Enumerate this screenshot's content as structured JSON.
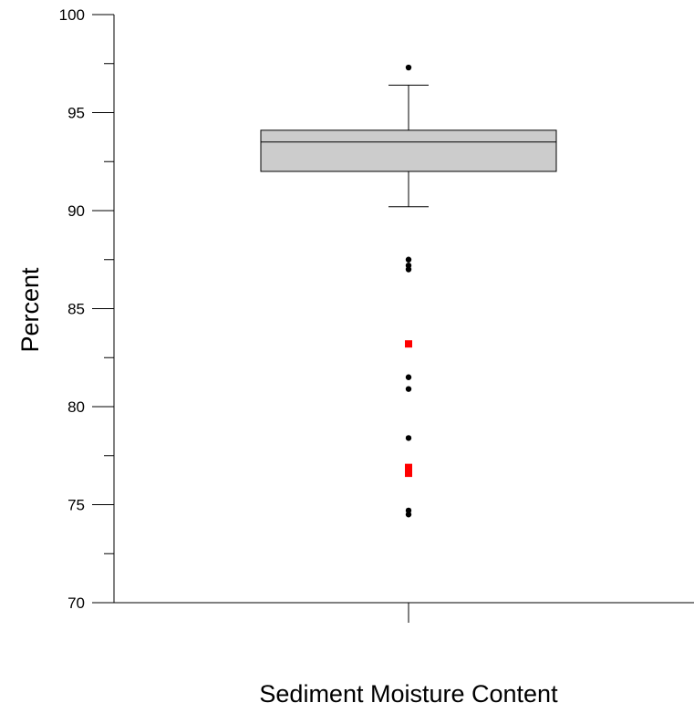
{
  "chart_data": {
    "type": "box",
    "title": "",
    "xlabel": "Sediment Moisture Content",
    "ylabel": "Percent",
    "ylim": [
      70,
      100
    ],
    "y_ticks": [
      70,
      75,
      80,
      85,
      90,
      95,
      100
    ],
    "y_minor_ticks": [
      72.5,
      77.5,
      82.5,
      87.5,
      92.5,
      97.5
    ],
    "grid": false,
    "box": {
      "q1": 92.0,
      "median": 93.5,
      "q3": 94.1,
      "whisker_low": 90.2,
      "whisker_high": 96.4,
      "fill_color": "#cccccc"
    },
    "outliers": [
      {
        "value": 97.3,
        "color": "#000000",
        "marker": "circle"
      },
      {
        "value": 87.5,
        "color": "#000000",
        "marker": "circle"
      },
      {
        "value": 87.2,
        "color": "#000000",
        "marker": "circle"
      },
      {
        "value": 87.0,
        "color": "#000000",
        "marker": "circle"
      },
      {
        "value": 83.2,
        "color": "#ff0000",
        "marker": "square"
      },
      {
        "value": 81.5,
        "color": "#000000",
        "marker": "circle"
      },
      {
        "value": 80.9,
        "color": "#000000",
        "marker": "circle"
      },
      {
        "value": 78.4,
        "color": "#000000",
        "marker": "circle"
      },
      {
        "value": 76.9,
        "color": "#ff0000",
        "marker": "square"
      },
      {
        "value": 76.6,
        "color": "#ff0000",
        "marker": "square"
      },
      {
        "value": 74.7,
        "color": "#000000",
        "marker": "circle"
      },
      {
        "value": 74.5,
        "color": "#000000",
        "marker": "circle"
      }
    ]
  }
}
